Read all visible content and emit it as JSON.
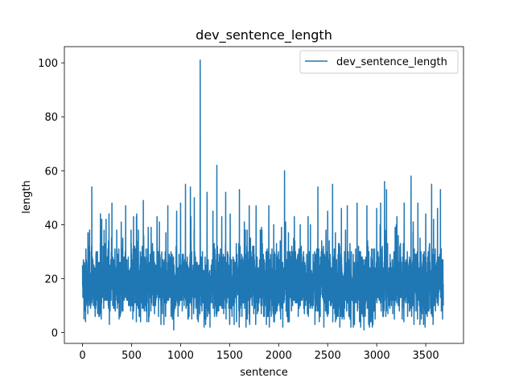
{
  "chart_data": {
    "type": "line",
    "title": "dev_sentence_length",
    "xlabel": "sentence",
    "ylabel": "length",
    "xlim": [
      -185,
      3885
    ],
    "ylim": [
      -4,
      106
    ],
    "xticks": [
      0,
      500,
      1000,
      1500,
      2000,
      2500,
      3000,
      3500
    ],
    "yticks": [
      0,
      20,
      40,
      60,
      80,
      100
    ],
    "grid": false,
    "legend": {
      "position": "top-right",
      "entries": [
        "dev_sentence_length"
      ]
    },
    "series": [
      {
        "name": "dev_sentence_length",
        "color": "#1f77b4",
        "n_points": 3680,
        "baseline_mean": 18,
        "baseline_spread": 6,
        "value_range": [
          1,
          101
        ],
        "seed": 1337,
        "peaks": [
          {
            "x": 0,
            "y": 25
          },
          {
            "x": 15,
            "y": 5
          },
          {
            "x": 70,
            "y": 37
          },
          {
            "x": 95,
            "y": 54
          },
          {
            "x": 150,
            "y": 30
          },
          {
            "x": 220,
            "y": 38
          },
          {
            "x": 240,
            "y": 42
          },
          {
            "x": 270,
            "y": 44
          },
          {
            "x": 300,
            "y": 48
          },
          {
            "x": 410,
            "y": 33
          },
          {
            "x": 440,
            "y": 47
          },
          {
            "x": 520,
            "y": 43
          },
          {
            "x": 550,
            "y": 43
          },
          {
            "x": 620,
            "y": 49
          },
          {
            "x": 700,
            "y": 39
          },
          {
            "x": 760,
            "y": 43
          },
          {
            "x": 800,
            "y": 3
          },
          {
            "x": 850,
            "y": 37
          },
          {
            "x": 870,
            "y": 47
          },
          {
            "x": 930,
            "y": 1
          },
          {
            "x": 960,
            "y": 45
          },
          {
            "x": 1000,
            "y": 48
          },
          {
            "x": 1050,
            "y": 55
          },
          {
            "x": 1100,
            "y": 54
          },
          {
            "x": 1140,
            "y": 50
          },
          {
            "x": 1180,
            "y": 4
          },
          {
            "x": 1200,
            "y": 101
          },
          {
            "x": 1240,
            "y": 2
          },
          {
            "x": 1270,
            "y": 52
          },
          {
            "x": 1300,
            "y": 2
          },
          {
            "x": 1330,
            "y": 45
          },
          {
            "x": 1370,
            "y": 62
          },
          {
            "x": 1420,
            "y": 43
          },
          {
            "x": 1460,
            "y": 52
          },
          {
            "x": 1500,
            "y": 4
          },
          {
            "x": 1600,
            "y": 53
          },
          {
            "x": 1650,
            "y": 41
          },
          {
            "x": 1700,
            "y": 47
          },
          {
            "x": 1770,
            "y": 47
          },
          {
            "x": 1830,
            "y": 38
          },
          {
            "x": 1900,
            "y": 47
          },
          {
            "x": 1950,
            "y": 40
          },
          {
            "x": 2020,
            "y": 5
          },
          {
            "x": 2060,
            "y": 60
          },
          {
            "x": 2100,
            "y": 37
          },
          {
            "x": 2160,
            "y": 43
          },
          {
            "x": 2220,
            "y": 40
          },
          {
            "x": 2300,
            "y": 43
          },
          {
            "x": 2370,
            "y": 3
          },
          {
            "x": 2400,
            "y": 54
          },
          {
            "x": 2500,
            "y": 45
          },
          {
            "x": 2550,
            "y": 55
          },
          {
            "x": 2640,
            "y": 46
          },
          {
            "x": 2700,
            "y": 47
          },
          {
            "x": 2800,
            "y": 48
          },
          {
            "x": 2870,
            "y": 1
          },
          {
            "x": 2900,
            "y": 47
          },
          {
            "x": 3000,
            "y": 46
          },
          {
            "x": 3040,
            "y": 48
          },
          {
            "x": 3080,
            "y": 56
          },
          {
            "x": 3100,
            "y": 53
          },
          {
            "x": 3200,
            "y": 40
          },
          {
            "x": 3220,
            "y": 36
          },
          {
            "x": 3280,
            "y": 48
          },
          {
            "x": 3350,
            "y": 58
          },
          {
            "x": 3380,
            "y": 3
          },
          {
            "x": 3420,
            "y": 48
          },
          {
            "x": 3500,
            "y": 44
          },
          {
            "x": 3560,
            "y": 55
          },
          {
            "x": 3580,
            "y": 42
          },
          {
            "x": 3620,
            "y": 46
          },
          {
            "x": 3650,
            "y": 53
          },
          {
            "x": 3680,
            "y": 29
          }
        ]
      }
    ]
  }
}
